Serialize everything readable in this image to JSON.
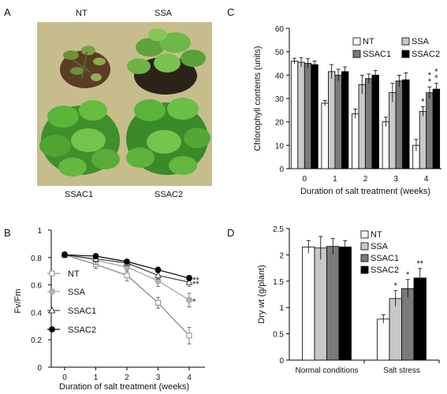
{
  "panels": {
    "A": {
      "letter": "A",
      "labels": [
        "NT",
        "SSA",
        "SSAC1",
        "SSAC2"
      ]
    },
    "B": {
      "letter": "B"
    },
    "C": {
      "letter": "C"
    },
    "D": {
      "letter": "D"
    }
  },
  "colors": {
    "NT": "#ffffff",
    "SSA": "#c8c8c8",
    "SSAC1": "#7a7a7a",
    "SSAC2": "#000000",
    "background_panel": "#c7bd8c"
  },
  "chart_data": [
    {
      "panel": "C",
      "type": "bar",
      "ylabel": "Chlorophyll contents (units)",
      "xlabel": "Duration of salt treatment (weeks)",
      "categories": [
        "0",
        "1",
        "2",
        "3",
        "4"
      ],
      "ylim": [
        0,
        60
      ],
      "yticks": [
        "0",
        "10",
        "20",
        "30",
        "40",
        "50",
        "60"
      ],
      "legend_position": "top-right",
      "series": [
        {
          "name": "NT",
          "values": [
            46,
            28,
            23.5,
            20,
            10
          ],
          "errors": [
            1.2,
            1.2,
            2,
            2,
            2.5
          ]
        },
        {
          "name": "SSA",
          "values": [
            45.5,
            41.5,
            36,
            32.5,
            24.5
          ],
          "errors": [
            2,
            3,
            4,
            4,
            2
          ]
        },
        {
          "name": "SSAC1",
          "values": [
            45,
            40,
            38.5,
            37.5,
            32.5
          ],
          "errors": [
            2,
            2.5,
            2,
            2.5,
            2.5
          ]
        },
        {
          "name": "SSAC2",
          "values": [
            44.5,
            41.5,
            40,
            38,
            34
          ],
          "errors": [
            1.5,
            2,
            2,
            3,
            2.5
          ]
        }
      ],
      "annotations": [
        {
          "category": "4",
          "series": "SSA",
          "text": "*"
        },
        {
          "category": "4",
          "series": "SSAC1",
          "text": "**"
        },
        {
          "category": "4",
          "series": "SSAC2",
          "text": "**"
        }
      ]
    },
    {
      "panel": "B",
      "type": "line",
      "ylabel": "Fv/Fm",
      "xlabel": "Duration of salt treatment (weeks)",
      "x": [
        0,
        1,
        2,
        3,
        4
      ],
      "xticks": [
        "0",
        "1",
        "2",
        "3",
        "4"
      ],
      "ylim": [
        0,
        1
      ],
      "yticks": [
        "0",
        "0.2",
        "0.4",
        "0.6",
        "0.8",
        "1"
      ],
      "legend_position": "left",
      "series": [
        {
          "name": "NT",
          "values": [
            0.82,
            0.75,
            0.67,
            0.47,
            0.23
          ],
          "errors": [
            0.02,
            0.03,
            0.04,
            0.04,
            0.06
          ],
          "marker": "open-square"
        },
        {
          "name": "SSA",
          "values": [
            0.82,
            0.78,
            0.73,
            0.63,
            0.49
          ],
          "errors": [
            0.02,
            0.03,
            0.03,
            0.04,
            0.05
          ],
          "marker": "filled-circle-gray"
        },
        {
          "name": "SSAC1",
          "values": [
            0.82,
            0.79,
            0.76,
            0.67,
            0.62
          ],
          "errors": [
            0.02,
            0.02,
            0.02,
            0.03,
            0.03
          ],
          "marker": "open-triangle"
        },
        {
          "name": "SSAC2",
          "values": [
            0.82,
            0.81,
            0.77,
            0.71,
            0.65
          ],
          "errors": [
            0.02,
            0.01,
            0.01,
            0.02,
            0.02
          ],
          "marker": "filled-circle-black"
        }
      ],
      "annotations": [
        {
          "series": "SSAC2",
          "x": 4,
          "text": "**"
        },
        {
          "series": "SSAC1",
          "x": 4,
          "text": "**"
        },
        {
          "series": "SSA",
          "x": 4,
          "text": "*"
        }
      ]
    },
    {
      "panel": "D",
      "type": "bar",
      "ylabel": "Dry wt (g/plant)",
      "xlabel": "",
      "categories": [
        "Normal conditions",
        "Salt stress"
      ],
      "ylim": [
        0,
        2.5
      ],
      "yticks": [
        "0",
        "0.5",
        "1",
        "1.5",
        "2",
        "2.5"
      ],
      "legend_position": "top-right",
      "series": [
        {
          "name": "NT",
          "values": [
            2.15,
            0.78
          ],
          "errors": [
            0.12,
            0.08
          ]
        },
        {
          "name": "SSA",
          "values": [
            2.13,
            1.17
          ],
          "errors": [
            0.22,
            0.15
          ]
        },
        {
          "name": "SSAC1",
          "values": [
            2.16,
            1.36
          ],
          "errors": [
            0.15,
            0.17
          ]
        },
        {
          "name": "SSAC2",
          "values": [
            2.15,
            1.56
          ],
          "errors": [
            0.12,
            0.18
          ]
        }
      ],
      "annotations": [
        {
          "category": "Salt stress",
          "series": "SSA",
          "text": "*"
        },
        {
          "category": "Salt stress",
          "series": "SSAC1",
          "text": "*"
        },
        {
          "category": "Salt stress",
          "series": "SSAC2",
          "text": "**"
        }
      ]
    }
  ]
}
